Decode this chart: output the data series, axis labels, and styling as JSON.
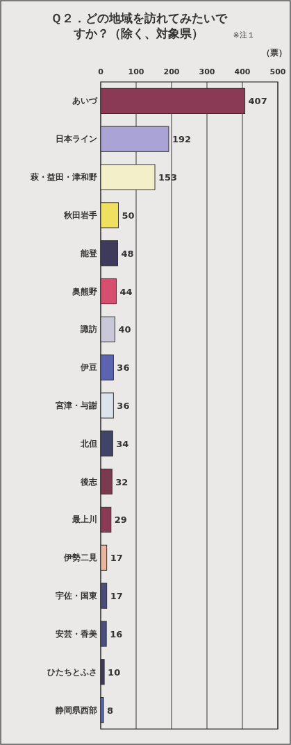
{
  "chart_data": {
    "type": "bar",
    "orientation": "horizontal",
    "title": "Ｑ２．どの地域を訪れてみたいですか？（除く、対象県）",
    "annotations": [
      "※注１"
    ],
    "xlabel": "（票）",
    "categories": [
      "あいづ",
      "日本ライン",
      "萩・益田・津和野",
      "秋田岩手",
      "能登",
      "奥熊野",
      "諏訪",
      "伊豆",
      "宮津・与謝",
      "北但",
      "後志",
      "最上川",
      "伊勢二見",
      "宇佐・国東",
      "安芸・香美",
      "ひたちとふさ",
      "静岡県西部"
    ],
    "values": [
      407,
      192,
      153,
      50,
      48,
      44,
      40,
      36,
      36,
      34,
      32,
      29,
      17,
      17,
      16,
      10,
      8
    ],
    "colors": [
      "#8b3a55",
      "#a9a3d6",
      "#f3efc8",
      "#f0e060",
      "#3e3a5c",
      "#d64f70",
      "#c9c8d8",
      "#5a64b0",
      "#dde3ea",
      "#3f4468",
      "#7a3a50",
      "#8a3a55",
      "#e8b5a0",
      "#4a4d7a",
      "#4a4f80",
      "#3e3c58",
      "#5a66b8"
    ],
    "xlim": [
      0,
      500
    ],
    "xticks": [
      0,
      100,
      200,
      300,
      400,
      500
    ],
    "grid": "x",
    "data_labels": true
  }
}
